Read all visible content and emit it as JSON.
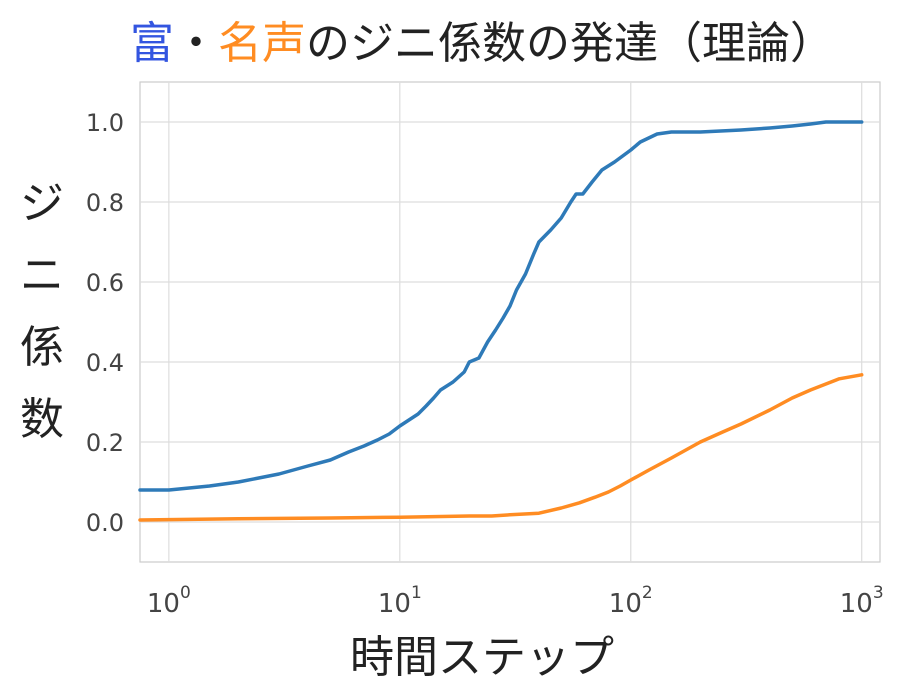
{
  "chart_data": {
    "type": "line",
    "title_parts": [
      {
        "text": "富",
        "color": "#3355e0"
      },
      {
        "text": "・",
        "color": "#222222"
      },
      {
        "text": "名声",
        "color": "#ff8c22"
      },
      {
        "text": "のジニ係数の発達（理論）",
        "color": "#222222"
      }
    ],
    "xlabel": "時間ステップ",
    "ylabel": "ジニ係数",
    "xscale": "log",
    "xlim": [
      0.75,
      1200
    ],
    "ylim": [
      -0.1,
      1.1
    ],
    "grid": true,
    "xticks": [
      {
        "base": "10",
        "exp": "0",
        "value": 1
      },
      {
        "base": "10",
        "exp": "1",
        "value": 10
      },
      {
        "base": "10",
        "exp": "2",
        "value": 100
      },
      {
        "base": "10",
        "exp": "3",
        "value": 1000
      }
    ],
    "yticks": [
      {
        "value": 0.0,
        "label": "0.0"
      },
      {
        "value": 0.2,
        "label": "0.2"
      },
      {
        "value": 0.4,
        "label": "0.4"
      },
      {
        "value": 0.6,
        "label": "0.6"
      },
      {
        "value": 0.8,
        "label": "0.8"
      },
      {
        "value": 1.0,
        "label": "1.0"
      }
    ],
    "series": [
      {
        "color": "#2e7ab8",
        "points": [
          [
            0.75,
            0.08
          ],
          [
            1,
            0.08
          ],
          [
            1.5,
            0.09
          ],
          [
            2,
            0.1
          ],
          [
            3,
            0.12
          ],
          [
            4,
            0.14
          ],
          [
            5,
            0.155
          ],
          [
            6,
            0.175
          ],
          [
            7,
            0.19
          ],
          [
            8,
            0.205
          ],
          [
            9,
            0.22
          ],
          [
            10,
            0.24
          ],
          [
            12,
            0.27
          ],
          [
            13,
            0.29
          ],
          [
            14,
            0.31
          ],
          [
            15,
            0.33
          ],
          [
            17,
            0.35
          ],
          [
            19,
            0.375
          ],
          [
            20,
            0.4
          ],
          [
            22,
            0.41
          ],
          [
            24,
            0.45
          ],
          [
            26,
            0.48
          ],
          [
            28,
            0.51
          ],
          [
            30,
            0.54
          ],
          [
            32,
            0.58
          ],
          [
            35,
            0.62
          ],
          [
            38,
            0.67
          ],
          [
            40,
            0.7
          ],
          [
            45,
            0.73
          ],
          [
            50,
            0.76
          ],
          [
            55,
            0.8
          ],
          [
            58,
            0.82
          ],
          [
            62,
            0.82
          ],
          [
            68,
            0.85
          ],
          [
            75,
            0.88
          ],
          [
            85,
            0.9
          ],
          [
            100,
            0.93
          ],
          [
            110,
            0.95
          ],
          [
            130,
            0.97
          ],
          [
            150,
            0.975
          ],
          [
            200,
            0.975
          ],
          [
            300,
            0.98
          ],
          [
            400,
            0.985
          ],
          [
            500,
            0.99
          ],
          [
            600,
            0.995
          ],
          [
            700,
            1.0
          ],
          [
            1000,
            1.0
          ]
        ]
      },
      {
        "color": "#ff8c22",
        "points": [
          [
            0.75,
            0.005
          ],
          [
            1,
            0.006
          ],
          [
            2,
            0.008
          ],
          [
            5,
            0.01
          ],
          [
            10,
            0.012
          ],
          [
            20,
            0.015
          ],
          [
            25,
            0.015
          ],
          [
            30,
            0.018
          ],
          [
            40,
            0.022
          ],
          [
            50,
            0.035
          ],
          [
            60,
            0.048
          ],
          [
            70,
            0.062
          ],
          [
            80,
            0.075
          ],
          [
            90,
            0.09
          ],
          [
            100,
            0.105
          ],
          [
            120,
            0.13
          ],
          [
            150,
            0.16
          ],
          [
            200,
            0.2
          ],
          [
            250,
            0.225
          ],
          [
            300,
            0.245
          ],
          [
            400,
            0.28
          ],
          [
            500,
            0.31
          ],
          [
            600,
            0.33
          ],
          [
            700,
            0.345
          ],
          [
            800,
            0.358
          ],
          [
            1000,
            0.368
          ]
        ]
      }
    ]
  }
}
